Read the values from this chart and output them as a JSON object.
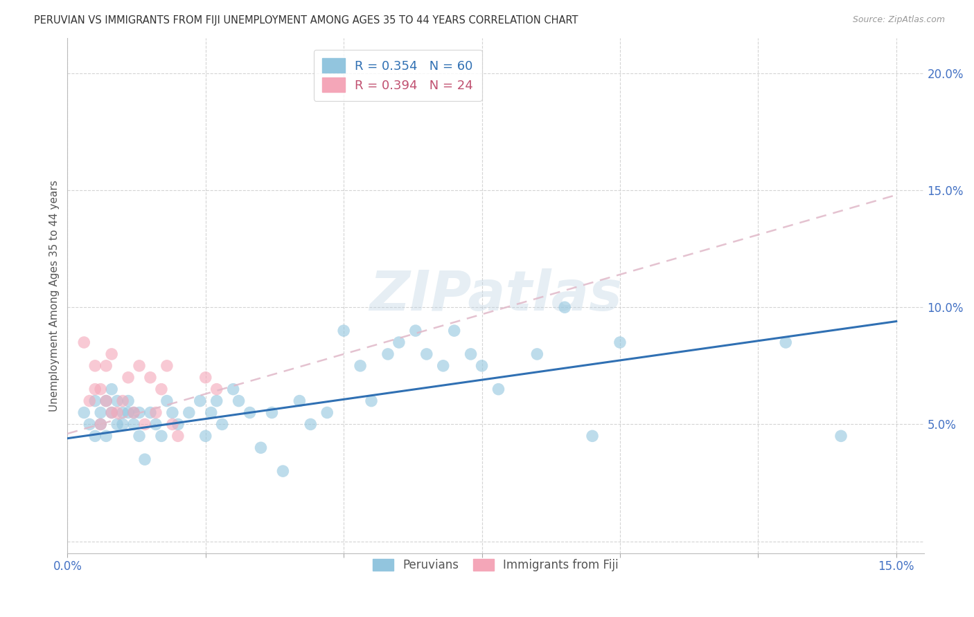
{
  "title": "PERUVIAN VS IMMIGRANTS FROM FIJI UNEMPLOYMENT AMONG AGES 35 TO 44 YEARS CORRELATION CHART",
  "source": "Source: ZipAtlas.com",
  "ylabel": "Unemployment Among Ages 35 to 44 years",
  "xlim": [
    0.0,
    0.155
  ],
  "ylim": [
    -0.005,
    0.215
  ],
  "xticks": [
    0.0,
    0.025,
    0.05,
    0.075,
    0.1,
    0.125,
    0.15
  ],
  "yticks": [
    0.0,
    0.05,
    0.1,
    0.15,
    0.2
  ],
  "ytick_labels": [
    "",
    "5.0%",
    "10.0%",
    "15.0%",
    "20.0%"
  ],
  "xtick_labels": [
    "0.0%",
    "",
    "",
    "",
    "",
    "",
    "15.0%"
  ],
  "blue_R": 0.354,
  "blue_N": 60,
  "pink_R": 0.394,
  "pink_N": 24,
  "blue_color": "#92c5de",
  "pink_color": "#f4a6b8",
  "blue_line_color": "#3070b3",
  "pink_line_color": "#d4a0b0",
  "tick_color": "#4472c4",
  "grid_color": "#d0d0d0",
  "background_color": "#ffffff",
  "watermark": "ZIPatlas",
  "blue_scatter_x": [
    0.003,
    0.004,
    0.005,
    0.005,
    0.006,
    0.006,
    0.007,
    0.007,
    0.008,
    0.008,
    0.009,
    0.009,
    0.01,
    0.01,
    0.011,
    0.011,
    0.012,
    0.012,
    0.013,
    0.013,
    0.014,
    0.015,
    0.016,
    0.017,
    0.018,
    0.019,
    0.02,
    0.022,
    0.024,
    0.025,
    0.026,
    0.027,
    0.028,
    0.03,
    0.031,
    0.033,
    0.035,
    0.037,
    0.039,
    0.042,
    0.044,
    0.047,
    0.05,
    0.053,
    0.055,
    0.058,
    0.06,
    0.063,
    0.065,
    0.068,
    0.07,
    0.073,
    0.075,
    0.078,
    0.085,
    0.09,
    0.095,
    0.1,
    0.13,
    0.14
  ],
  "blue_scatter_y": [
    0.055,
    0.05,
    0.06,
    0.045,
    0.055,
    0.05,
    0.06,
    0.045,
    0.055,
    0.065,
    0.05,
    0.06,
    0.055,
    0.05,
    0.055,
    0.06,
    0.05,
    0.055,
    0.055,
    0.045,
    0.035,
    0.055,
    0.05,
    0.045,
    0.06,
    0.055,
    0.05,
    0.055,
    0.06,
    0.045,
    0.055,
    0.06,
    0.05,
    0.065,
    0.06,
    0.055,
    0.04,
    0.055,
    0.03,
    0.06,
    0.05,
    0.055,
    0.09,
    0.075,
    0.06,
    0.08,
    0.085,
    0.09,
    0.08,
    0.075,
    0.09,
    0.08,
    0.075,
    0.065,
    0.08,
    0.1,
    0.045,
    0.085,
    0.085,
    0.045
  ],
  "pink_scatter_x": [
    0.003,
    0.004,
    0.005,
    0.005,
    0.006,
    0.006,
    0.007,
    0.007,
    0.008,
    0.008,
    0.009,
    0.01,
    0.011,
    0.012,
    0.013,
    0.014,
    0.015,
    0.016,
    0.017,
    0.018,
    0.019,
    0.02,
    0.025,
    0.027
  ],
  "pink_scatter_y": [
    0.085,
    0.06,
    0.065,
    0.075,
    0.05,
    0.065,
    0.06,
    0.075,
    0.055,
    0.08,
    0.055,
    0.06,
    0.07,
    0.055,
    0.075,
    0.05,
    0.07,
    0.055,
    0.065,
    0.075,
    0.05,
    0.045,
    0.07,
    0.065
  ],
  "blue_line_x": [
    0.0,
    0.15
  ],
  "blue_line_y": [
    0.044,
    0.094
  ],
  "pink_line_x": [
    0.0,
    0.15
  ],
  "pink_line_y": [
    0.046,
    0.148
  ]
}
